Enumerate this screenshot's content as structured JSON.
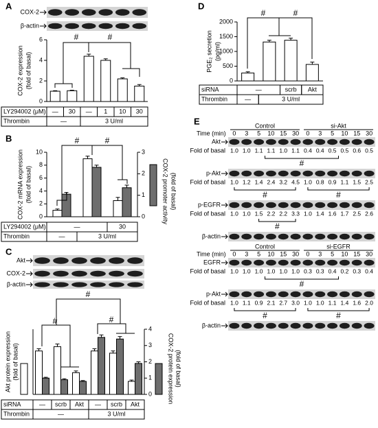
{
  "chart_data": [
    {
      "type": "bar",
      "panel": "A",
      "blot_labels": [
        "COX-2",
        "β-actin"
      ],
      "ylabel": [
        "COX-2 expression",
        "(fold of basal)"
      ],
      "ylim": [
        0,
        6
      ],
      "yticks": [
        0,
        2,
        4,
        6
      ],
      "series": [
        {
          "color": "#ffffff",
          "values": [
            1.0,
            1.05,
            4.4,
            4.0,
            2.2,
            1.5
          ],
          "errors": [
            0.05,
            0.05,
            0.2,
            0.15,
            0.1,
            0.15
          ]
        }
      ],
      "annotations": [
        "#",
        "#"
      ],
      "conditions": [
        {
          "label": "LY294002 (μM)",
          "cells": [
            "—",
            "30",
            "—",
            "1",
            "10",
            "30"
          ]
        },
        {
          "label": "Thrombin",
          "cells": [
            "—",
            "3 U/ml"
          ]
        }
      ]
    },
    {
      "type": "bar",
      "panel": "B",
      "ylabel": [
        "COX-2 mRNA expression",
        "(fold of basal)"
      ],
      "ylim": [
        0,
        10
      ],
      "yticks": [
        0,
        2,
        4,
        6,
        8,
        10
      ],
      "y2label": [
        "COX-2 promoter activity",
        "(fold of basal)"
      ],
      "y2lim": [
        0,
        3
      ],
      "y2ticks": [
        0,
        1,
        2,
        3
      ],
      "series": [
        {
          "color": "#ffffff",
          "values": [
            1.0,
            9.0,
            2.5
          ],
          "errors": [
            0.2,
            0.4,
            0.5
          ]
        },
        {
          "color": "#6e6e6e",
          "axis": "y2",
          "values": [
            1.05,
            2.3,
            1.35
          ],
          "errors": [
            0.08,
            0.1,
            0.12
          ]
        }
      ],
      "annotations": [
        "#",
        "#"
      ],
      "conditions": [
        {
          "label": "LY294002 (μM)",
          "cells": [
            "—",
            "30"
          ]
        },
        {
          "label": "Thrombin",
          "cells": [
            "—",
            "3 U/ml"
          ]
        }
      ]
    },
    {
      "type": "bar",
      "panel": "C",
      "blot_labels": [
        "Akt",
        "COX-2",
        "β-actin"
      ],
      "ylabel": [
        "Akt protein expression",
        "(fold of basal)"
      ],
      "ylim": [
        0,
        1.5
      ],
      "y2label": [
        "COX-2 protein expression",
        "(fold of basal)"
      ],
      "y2lim": [
        0,
        4
      ],
      "y2ticks": [
        0,
        1,
        2,
        3,
        4
      ],
      "series": [
        {
          "color": "#ffffff",
          "values": [
            1.0,
            1.1,
            0.5,
            1.0,
            0.95,
            0.3
          ],
          "errors": [
            0.05,
            0.06,
            0.04,
            0.05,
            0.05,
            0.03
          ]
        },
        {
          "color": "#6e6e6e",
          "axis": "y2",
          "values": [
            1.0,
            0.9,
            0.8,
            3.5,
            3.4,
            1.9
          ],
          "errors": [
            0.05,
            0.06,
            0.05,
            0.15,
            0.15,
            0.1
          ]
        }
      ],
      "annotations": [
        "#",
        "#",
        "#"
      ],
      "conditions": [
        {
          "label": "siRNA",
          "cells": [
            "—",
            "scrb",
            "Akt",
            "—",
            "scrb",
            "Akt"
          ]
        },
        {
          "label": "Thrombin",
          "cells": [
            "—",
            "3 U/ml"
          ]
        }
      ]
    },
    {
      "type": "bar",
      "panel": "D",
      "ylabel": [
        "PGE₂ secretion",
        "(pg/ml)"
      ],
      "ylim": [
        0,
        2000
      ],
      "yticks": [
        0,
        500,
        1000,
        1500,
        2000
      ],
      "series": [
        {
          "color": "#ffffff",
          "values": [
            270,
            1320,
            1380,
            560
          ],
          "errors": [
            40,
            60,
            70,
            80
          ]
        }
      ],
      "annotations": [
        "#",
        "#"
      ],
      "conditions": [
        {
          "label": "siRNA",
          "cells": [
            "—",
            "scrb",
            "Akt"
          ]
        },
        {
          "label": "Thrombin",
          "cells": [
            "—",
            "3 U/ml"
          ]
        }
      ]
    }
  ],
  "blot_panel": {
    "panel": "E",
    "blocks": [
      {
        "groups": [
          "Control",
          "si-Akt"
        ],
        "time_label": "Time (min)",
        "times": [
          0,
          3,
          5,
          10,
          15,
          30,
          0,
          3,
          5,
          10,
          15,
          30
        ],
        "rows": [
          {
            "protein": "Akt",
            "fold_label": "Fold of basal",
            "folds": [
              "1.0",
              "1.0",
              "1.1",
              "1.1",
              "1.0",
              "1.1",
              "0.4",
              "0.4",
              "0.5",
              "0.5",
              "0.6",
              "0.5"
            ],
            "annotations": [
              "#"
            ]
          },
          {
            "protein": "p-Akt",
            "fold_label": "Fold of basal",
            "folds": [
              "1.0",
              "1.2",
              "1.4",
              "2.4",
              "3.2",
              "4.5",
              "1.0",
              "0.8",
              "0.9",
              "1.1",
              "1.5",
              "2.5"
            ],
            "annotations": [
              "#",
              "#"
            ]
          },
          {
            "protein": "p-EGFR",
            "fold_label": "Fold of basal",
            "folds": [
              "1.0",
              "1.0",
              "1.5",
              "2.2",
              "2.2",
              "3.3",
              "1.0",
              "1.4",
              "1.6",
              "1.7",
              "2.5",
              "2.6"
            ],
            "annotations": [
              "#"
            ]
          },
          {
            "protein": "β-actin"
          }
        ]
      },
      {
        "groups": [
          "Control",
          "si-EGFR"
        ],
        "time_label": "Time (min)",
        "times": [
          0,
          3,
          5,
          10,
          15,
          30,
          0,
          3,
          5,
          10,
          15,
          30
        ],
        "rows": [
          {
            "protein": "EGFR",
            "fold_label": "Fold of basal",
            "folds": [
              "1.0",
              "1.0",
              "1.0",
              "1.0",
              "1.0",
              "1.0",
              "0.3",
              "0.3",
              "0.4",
              "0.2",
              "0.3",
              "0.4"
            ],
            "annotations": [
              "#"
            ]
          },
          {
            "protein": "p-Akt",
            "fold_label": "Fold of basal",
            "folds": [
              "1.0",
              "1.1",
              "0.9",
              "2.1",
              "2.7",
              "3.0",
              "1.0",
              "1.0",
              "1.1",
              "1.4",
              "1.6",
              "2.0"
            ],
            "annotations": [
              "#",
              "#"
            ]
          },
          {
            "protein": "β-actin"
          }
        ]
      }
    ]
  }
}
